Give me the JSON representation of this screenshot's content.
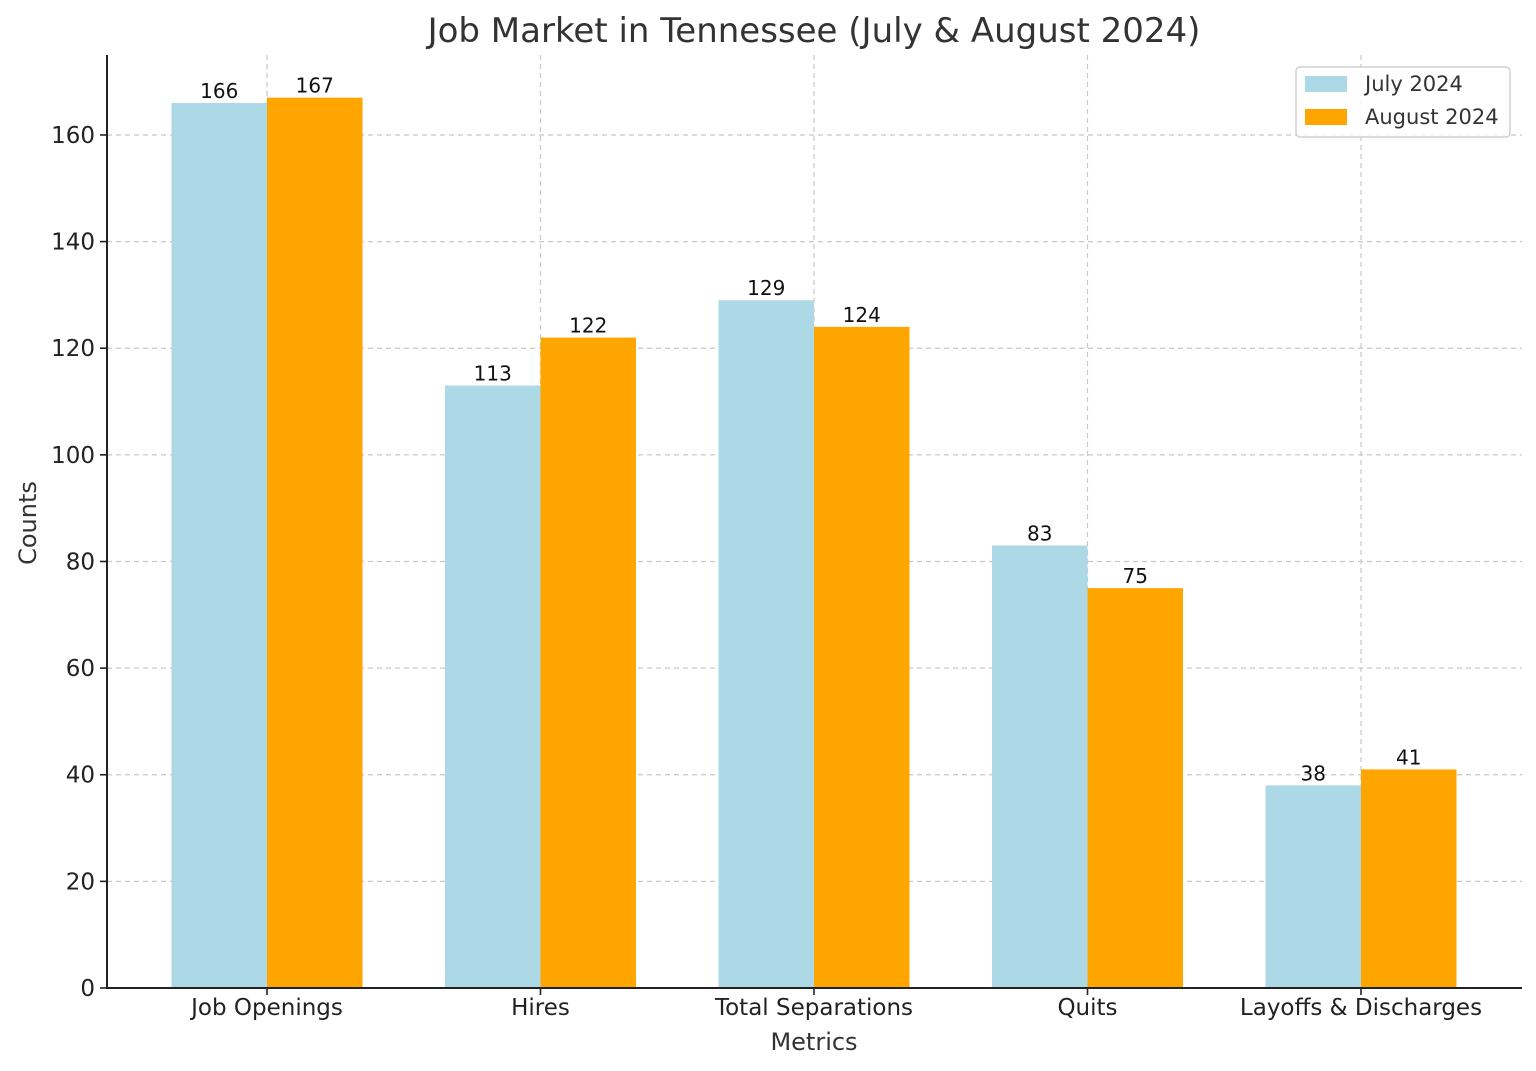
{
  "chart_data": {
    "type": "bar",
    "title": "Job Market in Tennessee (July & August 2024)",
    "xlabel": "Metrics",
    "ylabel": "Counts",
    "categories": [
      "Job Openings",
      "Hires",
      "Total Separations",
      "Quits",
      "Layoffs & Discharges"
    ],
    "series": [
      {
        "name": "July 2024",
        "color": "#add8e6",
        "values": [
          166,
          113,
          129,
          83,
          38
        ]
      },
      {
        "name": "August 2024",
        "color": "#ffa500",
        "values": [
          167,
          122,
          124,
          75,
          41
        ]
      }
    ],
    "ylim": [
      0,
      175
    ],
    "yticks": [
      0,
      20,
      40,
      60,
      80,
      100,
      120,
      140,
      160
    ],
    "grid": true,
    "legend_position": "top-right"
  }
}
